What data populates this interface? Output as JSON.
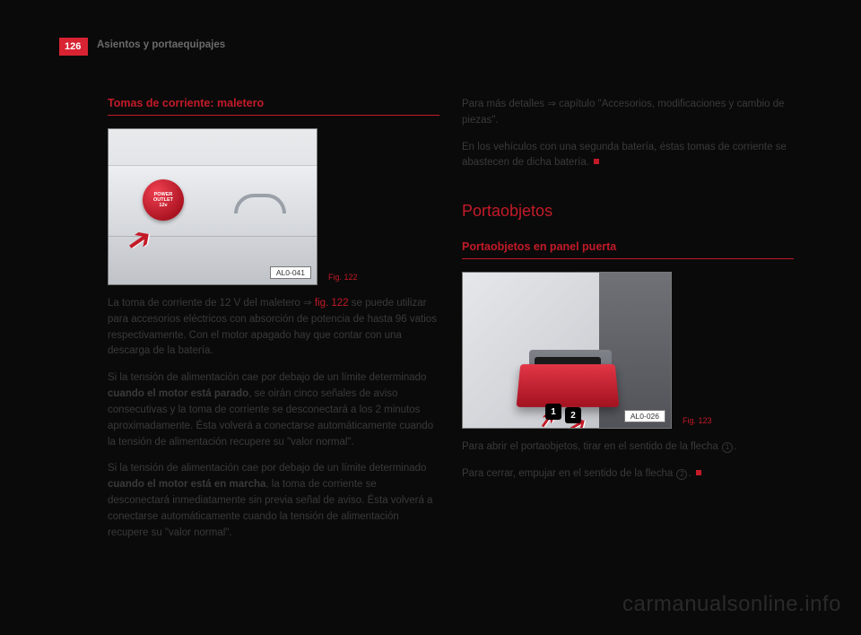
{
  "page_number": "126",
  "header_title": "Asientos y portaequipajes",
  "left": {
    "heading": "Tomas de corriente: maletero",
    "fig": {
      "caption": "Fig. 122",
      "label": "AL0-041",
      "outlet_line1": "POWER",
      "outlet_line2": "OUTLET",
      "outlet_line3": "12v"
    },
    "p1_a": "La toma de corriente de 12 V del maletero ⇒ ",
    "p1_ref": "fig. 122",
    "p1_b": " se puede utilizar para accesorios eléctricos con absorción de potencia de hasta 96 vatios respectivamente. Con el motor apagado hay que contar con una descarga de la batería.",
    "p2_a": "Si la tensión de alimentación cae por debajo de un límite determinado ",
    "p2_bold": "cuando el motor está parado",
    "p2_b": ", se oirán cinco señales de aviso consecutivas y la toma de corriente se desconectará a los 2 minutos aproximadamente. Ésta volverá a conectarse automáticamente cuando la tensión de alimentación recupere su \"valor normal\".",
    "p3_a": "Si la tensión de alimentación cae por debajo de un límite determinado ",
    "p3_bold": "cuando el motor está en marcha",
    "p3_b": ", la toma de corriente se desconectará inmediatamente sin previa señal de aviso. Ésta volverá a conectarse automáticamente cuando la tensión de alimentación recupere su \"valor normal\"."
  },
  "right": {
    "p1": "Para más detalles ⇒ capítulo \"Accesorios, modificaciones y cambio de piezas\".",
    "p2": "En los vehículos con una segunda batería, éstas tomas de corriente se abastecen de dicha batería.",
    "section": "Portaobjetos",
    "heading": "Portaobjetos en panel puerta",
    "fig": {
      "caption": "Fig. 123",
      "label": "AL0-026",
      "badge1": "1",
      "badge2": "2"
    },
    "p3_a": "Para abrir el portaobjetos, tirar en el sentido de la flecha ",
    "p3_n": "1",
    "p3_b": ".",
    "p4_a": "Para cerrar, empujar en el sentido de la flecha ",
    "p4_n": "2",
    "p4_b": "."
  },
  "watermark": "carmanualsonline.info",
  "colors": {
    "accent": "#c31a28",
    "page_bg": "#0a0a0a",
    "text": "#3a3a3a"
  }
}
